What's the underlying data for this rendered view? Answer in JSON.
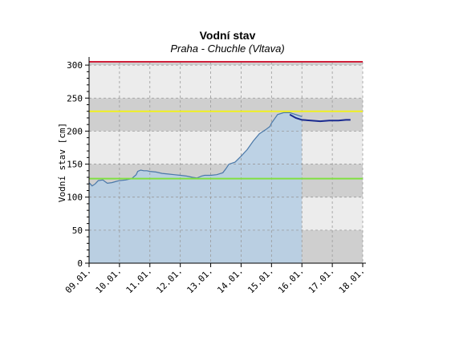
{
  "chart_data": {
    "type": "area",
    "title": "Vodní stav",
    "subtitle": "Praha - Chuchle (Vltava)",
    "ylabel": "Vodní stav [cm]",
    "xlabel": "",
    "ylim": [
      0,
      305
    ],
    "yticks": [
      0,
      50,
      100,
      150,
      200,
      250,
      300
    ],
    "x_categories": [
      "09.01.",
      "10.01.",
      "11.01.",
      "12.01.",
      "13.01.",
      "14.01.",
      "15.01.",
      "16.01.",
      "17.01.",
      "18.01."
    ],
    "grid": true,
    "thresholds": [
      {
        "value": 305,
        "color": "#d0203a"
      },
      {
        "value": 230,
        "color": "#f0f020"
      },
      {
        "value": 128,
        "color": "#80e040"
      }
    ],
    "series": [
      {
        "kind": "measured",
        "color": "#4a78a8",
        "fill": "#b8cfe4",
        "x": [
          0.0,
          0.1,
          0.2,
          0.3,
          0.45,
          0.6,
          0.75,
          0.9,
          1.0,
          1.2,
          1.4,
          1.55,
          1.6,
          1.7,
          1.8,
          1.9,
          2.0,
          2.2,
          2.4,
          2.6,
          2.8,
          3.0,
          3.2,
          3.4,
          3.55,
          3.6,
          3.7,
          3.8,
          4.0,
          4.2,
          4.4,
          4.5,
          4.6,
          4.8,
          5.0,
          5.2,
          5.4,
          5.6,
          5.8,
          5.95,
          6.0,
          6.2,
          6.4,
          6.6,
          6.8,
          7.0
        ],
        "y": [
          122,
          117,
          120,
          125,
          126,
          121,
          122,
          124,
          125,
          126,
          128,
          134,
          139,
          141,
          140,
          140,
          139,
          138,
          136,
          135,
          134,
          133,
          132,
          130,
          129,
          130,
          132,
          133,
          133,
          134,
          137,
          143,
          150,
          153,
          162,
          172,
          185,
          196,
          202,
          207,
          212,
          225,
          228,
          228,
          225,
          222
        ]
      },
      {
        "kind": "forecast",
        "color": "#1a2a90",
        "x": [
          6.6,
          6.8,
          7.0,
          7.3,
          7.6,
          7.9,
          8.2,
          8.45,
          8.6
        ],
        "y": [
          225,
          220,
          217,
          216,
          215,
          216,
          216,
          217,
          217
        ]
      }
    ]
  }
}
